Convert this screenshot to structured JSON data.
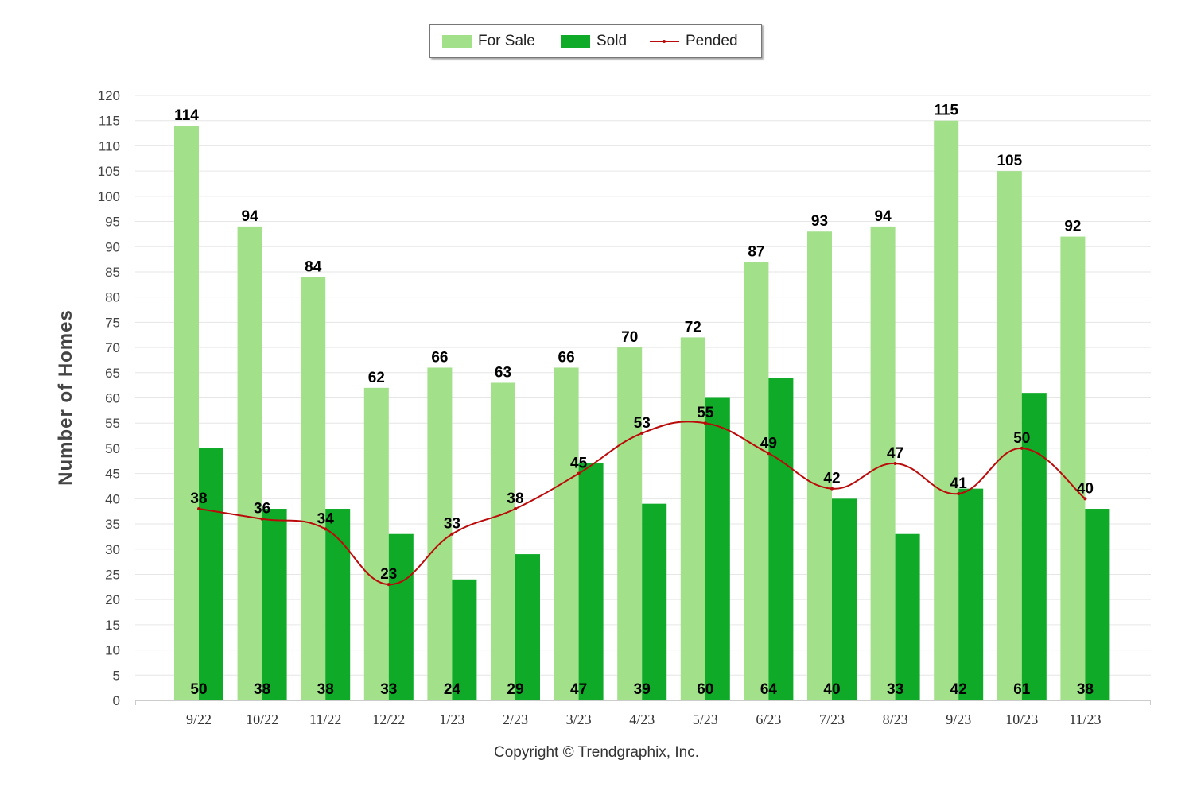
{
  "chart_data": {
    "type": "bar",
    "title": "",
    "ylabel": "Number of Homes",
    "xlabel": "",
    "ylim": [
      0,
      120
    ],
    "ytick_step": 5,
    "grid": true,
    "legend_position": "top-center",
    "categories": [
      "9/22",
      "10/22",
      "11/22",
      "12/22",
      "1/23",
      "2/23",
      "3/23",
      "4/23",
      "5/23",
      "6/23",
      "7/23",
      "8/23",
      "9/23",
      "10/23",
      "11/23"
    ],
    "series": [
      {
        "name": "For Sale",
        "kind": "bar",
        "color": "#a2e08a",
        "values": [
          114,
          94,
          84,
          62,
          66,
          63,
          66,
          70,
          72,
          87,
          93,
          94,
          115,
          105,
          92
        ]
      },
      {
        "name": "Sold",
        "kind": "bar",
        "color": "#0faa27",
        "values": [
          50,
          38,
          38,
          33,
          24,
          29,
          47,
          39,
          60,
          64,
          40,
          33,
          42,
          61,
          38
        ]
      },
      {
        "name": "Pended",
        "kind": "line",
        "color": "#bb0a0a",
        "values": [
          38,
          36,
          34,
          23,
          33,
          38,
          45,
          53,
          55,
          49,
          42,
          47,
          41,
          50,
          40
        ]
      }
    ]
  },
  "legend": {
    "items": [
      {
        "label": "For Sale",
        "color": "#a2e08a"
      },
      {
        "label": "Sold",
        "color": "#0faa27"
      },
      {
        "label": "Pended",
        "color": "#bb0a0a"
      }
    ]
  },
  "axis": {
    "y_title": "Number of Homes"
  },
  "footer": {
    "copyright": "Copyright © Trendgraphix, Inc."
  }
}
